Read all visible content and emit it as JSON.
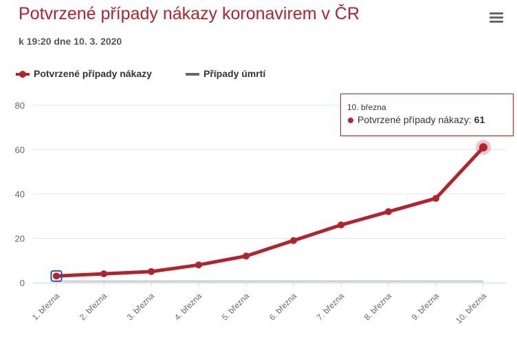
{
  "header": {
    "title": "Potvrzené případy nákazy koronavirem v ČR",
    "subtitle": "k 19:20 dne 10. 3. 2020"
  },
  "menu": {
    "icon": "hamburger-menu-icon"
  },
  "colors": {
    "accent": "#b5222b",
    "deaths": "#666666",
    "grid": "#e6e6e6",
    "axis_text": "#666666"
  },
  "legend": {
    "items": [
      {
        "label": "Potvrzené případy nákazy",
        "color": "#b5222b"
      },
      {
        "label": "Případy úmrtí",
        "color": "#666666"
      }
    ]
  },
  "tooltip": {
    "header": "10. března",
    "series": "Potvrzené případy nákazy",
    "value": "61"
  },
  "chart_data": {
    "type": "line",
    "categories": [
      "1. března",
      "2. března",
      "3. března",
      "4. března",
      "5. března",
      "6. března",
      "7. března",
      "8. března",
      "9. března",
      "10. března"
    ],
    "series": [
      {
        "name": "Potvrzené případy nákazy",
        "values": [
          3,
          4,
          5,
          8,
          12,
          19,
          26,
          32,
          38,
          61
        ]
      },
      {
        "name": "Případy úmrtí",
        "values": [
          0,
          0,
          0,
          0,
          0,
          0,
          0,
          0,
          0,
          0
        ]
      }
    ],
    "ylim": [
      0,
      80
    ],
    "yticks": [
      "0",
      "20",
      "40",
      "60",
      "80"
    ],
    "grid": true,
    "legend_position": "top-left"
  }
}
